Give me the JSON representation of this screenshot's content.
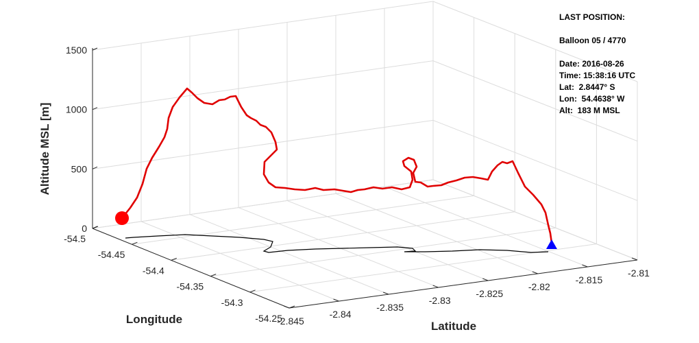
{
  "chart_data": {
    "type": "line-3d",
    "zlabel": "Altitude MSL [m]",
    "xlabel": "Longitude",
    "ylabel": "Latitude",
    "z_ticks": [
      "0",
      "500",
      "1000",
      "1500"
    ],
    "z_tick_values": [
      0,
      500,
      1000,
      1500
    ],
    "lon_ticks": [
      "-54.5",
      "-54.45",
      "-54.4",
      "-54.35",
      "-54.3",
      "-54.25"
    ],
    "lon_tick_values": [
      -54.5,
      -54.45,
      -54.4,
      -54.35,
      -54.3,
      -54.25
    ],
    "lat_ticks": [
      "-2.845",
      "-2.84",
      "-2.835",
      "-2.83",
      "-2.825",
      "-2.82",
      "-2.815",
      "-2.81"
    ],
    "lat_tick_values": [
      -2.845,
      -2.84,
      -2.835,
      -2.83,
      -2.825,
      -2.82,
      -2.815,
      -2.81
    ],
    "grid": true,
    "series": [
      {
        "role": "flight-track",
        "color": "#e00000"
      },
      {
        "role": "ground-track",
        "color": "#000000"
      }
    ],
    "start_marker": {
      "shape": "circle",
      "color": "#ff0000"
    },
    "end_marker": {
      "shape": "triangle",
      "color": "#0000ff"
    }
  },
  "info_panel": {
    "heading": "LAST POSITION:",
    "balloon": "Balloon 05 / 4770",
    "date": "Date: 2016-08-26",
    "time": "Time: 15:38:16 UTC",
    "lat": "Lat:  2.8447° S",
    "lon": "Lon:  54.4638° W",
    "alt": "Alt:  183 M MSL"
  }
}
